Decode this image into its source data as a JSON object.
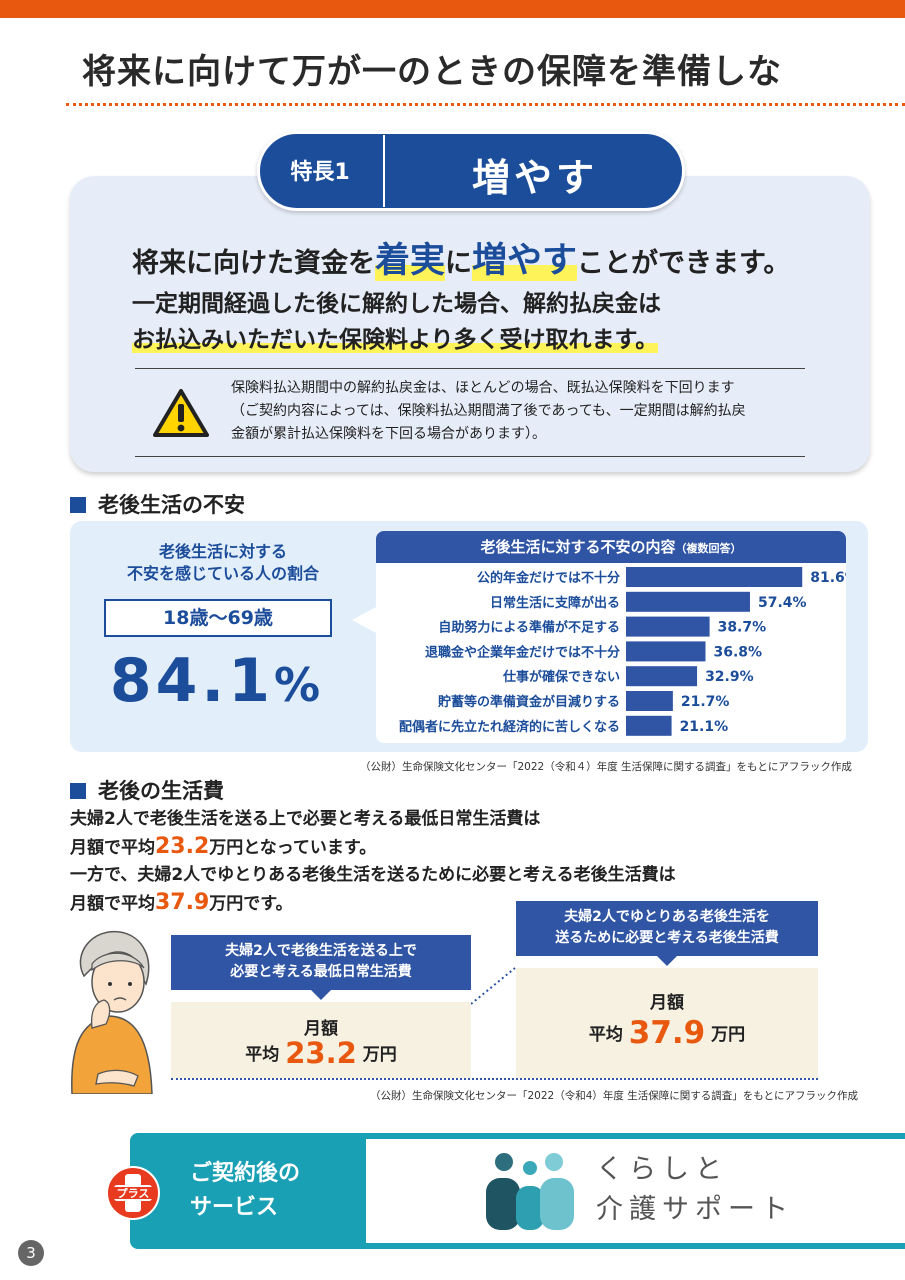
{
  "page": {
    "title": "将来に向けて万が一のときの保障を準備しな",
    "page_number": "3"
  },
  "feature": {
    "tab_number": "特長1",
    "tab_name": "増やす",
    "headline_prefix": "将来に向けた資金を",
    "headline_hl1": "着実",
    "headline_mid": "に",
    "headline_hl2": "増やす",
    "headline_suffix": "ことができます。",
    "sub_line1": "一定期間経過した後に解約した場合、解約払戻金は",
    "sub_line2": "お払込みいただいた保険料より多く受け取れます。",
    "warning_line1": "保険料払込期間中の解約払戻金は、ほとんどの場合、既払込保険料を下回ります",
    "warning_line2": "（ご契約内容によっては、保険料払込期間満了後であっても、一定期間は解約払戻",
    "warning_line3": "金額が累計払込保険料を下回る場合があります）。",
    "warning_icon": "warning-triangle-icon"
  },
  "anxiety": {
    "section_title": "老後生活の不安",
    "label_line1": "老後生活に対する",
    "label_line2": "不安を感じている人の割合",
    "age_range": "18歳〜69歳",
    "big_value": "84.1",
    "big_unit": "%",
    "chart_title": "老後生活に対する不安の内容",
    "chart_title_note": "（複数回答）"
  },
  "chart_data": {
    "type": "bar",
    "orientation": "horizontal",
    "title": "老後生活に対する不安の内容（複数回答）",
    "categories": [
      "公的年金だけでは不十分",
      "日常生活に支障が出る",
      "自助努力による準備が不足する",
      "退職金や企業年金だけでは不十分",
      "仕事が確保できない",
      "貯蓄等の準備資金が目減りする",
      "配偶者に先立たれ経済的に苦しくなる"
    ],
    "values": [
      81.6,
      57.4,
      38.7,
      36.8,
      32.9,
      21.7,
      21.1
    ],
    "value_labels": [
      "81.6%",
      "57.4%",
      "38.7%",
      "36.8%",
      "32.9%",
      "21.7%",
      "21.1%"
    ],
    "xlim": [
      0,
      100
    ],
    "bar_color": "#2f55a4"
  },
  "source1": "（公財）生命保険文化センター「2022（令和４）年度 生活保障に関する調査」をもとにアフラック作成",
  "cost": {
    "section_title": "老後の生活費",
    "line1": "夫婦2人で老後生活を送る上で必要と考える最低日常生活費は",
    "line2_prefix": "月額で平均",
    "line2_value": "23.2",
    "line2_suffix": "万円となっています。",
    "line3": "一方で、夫婦2人でゆとりある老後生活を送るために必要と考える老後生活費は",
    "line4_prefix": "月額で平均",
    "line4_value": "37.9",
    "line4_suffix": "万円です。",
    "min_banner_line1": "夫婦2人で老後生活を送る上で",
    "min_banner_line2": "必要と考える最低日常生活費",
    "min_label1": "月額",
    "min_label2_prefix": "平均",
    "min_value": "23.2",
    "min_unit": "万円",
    "ext_banner_line1": "夫婦2人でゆとりある老後生活を",
    "ext_banner_line2": "送るために必要と考える老後生活費",
    "ext_label1": "月額",
    "ext_label2_prefix": "平均",
    "ext_value": "37.9",
    "ext_unit": "万円",
    "min_fill_fraction": 0.61,
    "ext_fill_fraction": 1.0
  },
  "source2": "（公財）生命保険文化センター「2022（令和4）年度 生活保障に関する調査」をもとにアフラック作成",
  "service": {
    "badge": "プラス",
    "label_line1": "ご契約後の",
    "label_line2": "サービス",
    "name_line1": "くらしと",
    "name_line2": "介護サポート",
    "logo_icon": "family-people-icon"
  },
  "colors": {
    "accent_orange": "#e8580f",
    "brand_blue": "#1c4d9a",
    "teal": "#1aa0b5",
    "highlight_yellow": "#fff35a"
  }
}
